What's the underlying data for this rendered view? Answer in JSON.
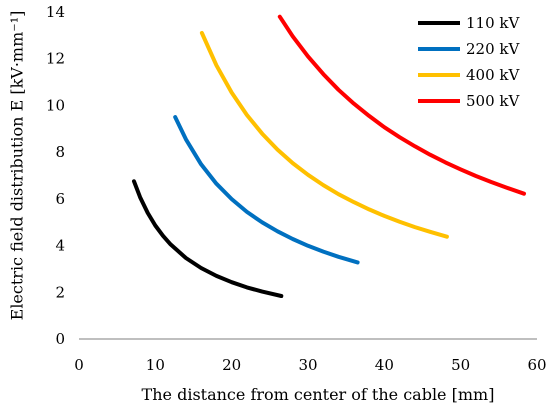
{
  "chart_data": {
    "type": "line",
    "title": "",
    "xlabel": "The distance from center of the cable [mm]",
    "ylabel": "Electric field distribution E [kV·mm⁻¹]",
    "xlim": [
      0,
      60
    ],
    "ylim": [
      0,
      14
    ],
    "xticks": [
      0,
      10,
      20,
      30,
      40,
      50,
      60
    ],
    "yticks": [
      0,
      2,
      4,
      6,
      8,
      10,
      12,
      14
    ],
    "grid": false,
    "legend_position": "top-right",
    "series": [
      {
        "name": "110 kV",
        "color": "#000000",
        "x": [
          7.2,
          8,
          9,
          10,
          11,
          12,
          14,
          16,
          18,
          20,
          22,
          24,
          26.5
        ],
        "y": [
          6.75,
          6.07,
          5.4,
          4.86,
          4.42,
          4.05,
          3.47,
          3.04,
          2.7,
          2.43,
          2.21,
          2.03,
          1.84
        ]
      },
      {
        "name": "220 kV",
        "color": "#0070C0",
        "x": [
          12.6,
          14,
          16,
          18,
          20,
          22,
          24,
          26,
          28,
          30,
          32,
          34,
          36.5
        ],
        "y": [
          9.5,
          8.55,
          7.48,
          6.65,
          5.99,
          5.44,
          4.99,
          4.61,
          4.28,
          3.99,
          3.74,
          3.52,
          3.28
        ]
      },
      {
        "name": "400 kV",
        "color": "#FFC000",
        "x": [
          16.1,
          18,
          20,
          22,
          24,
          26,
          28,
          30,
          32,
          34,
          36,
          38,
          40,
          42,
          44,
          46,
          48.2
        ],
        "y": [
          13.1,
          11.72,
          10.55,
          9.59,
          8.79,
          8.11,
          7.53,
          7.03,
          6.59,
          6.2,
          5.86,
          5.55,
          5.27,
          5.02,
          4.79,
          4.59,
          4.38
        ]
      },
      {
        "name": "500 kV",
        "color": "#FF0000",
        "x": [
          26.3,
          28,
          30,
          32,
          34,
          36,
          38,
          40,
          42,
          44,
          46,
          48,
          50,
          52,
          54,
          56,
          58.3
        ],
        "y": [
          13.8,
          12.96,
          12.1,
          11.34,
          10.67,
          10.08,
          9.55,
          9.07,
          8.64,
          8.25,
          7.89,
          7.56,
          7.26,
          6.98,
          6.72,
          6.48,
          6.22
        ]
      }
    ]
  }
}
